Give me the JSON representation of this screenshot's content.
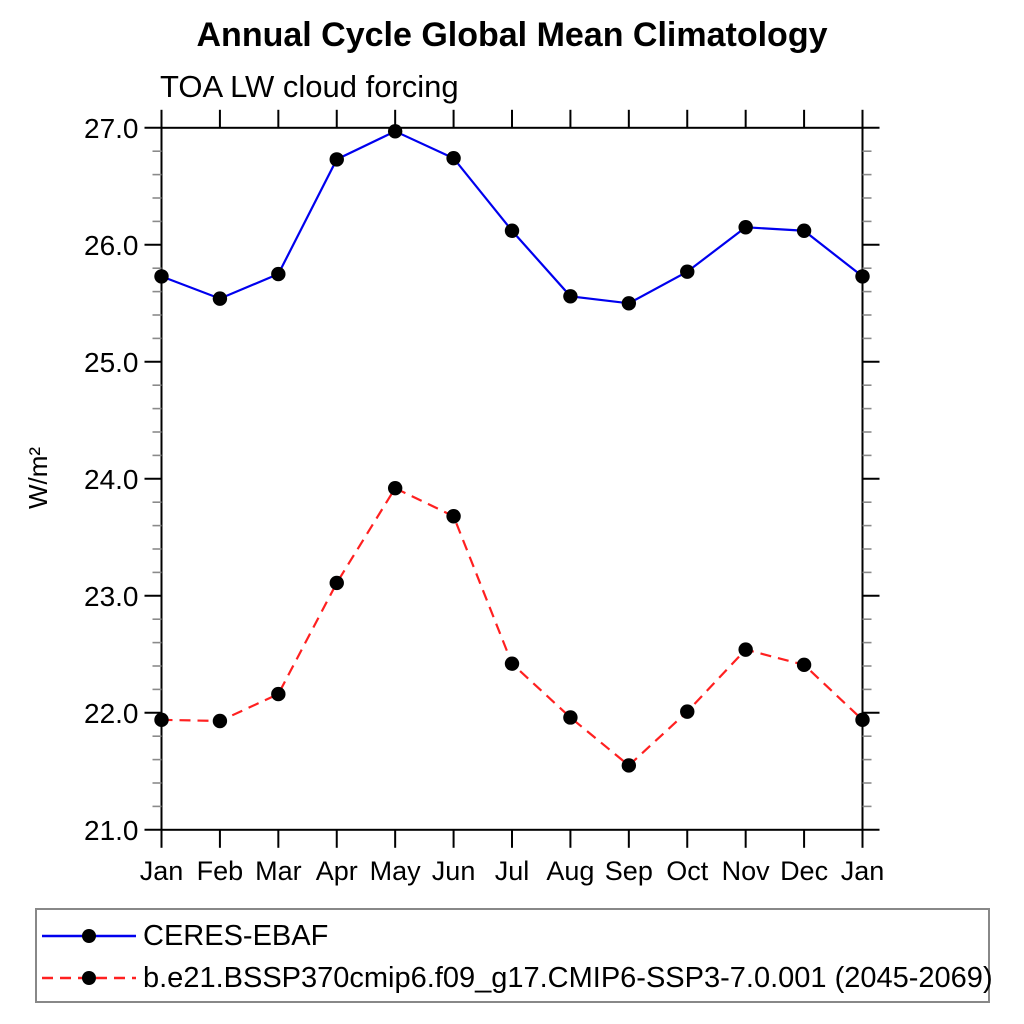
{
  "chart_data": {
    "type": "line",
    "title": "Annual Cycle Global Mean Climatology",
    "subtitle": "TOA LW cloud forcing",
    "ylabel": "W/m²",
    "xlabel": "",
    "categories": [
      "Jan",
      "Feb",
      "Mar",
      "Apr",
      "May",
      "Jun",
      "Jul",
      "Aug",
      "Sep",
      "Oct",
      "Nov",
      "Dec",
      "Jan"
    ],
    "ylim": [
      21.0,
      27.0
    ],
    "ytick_labels": [
      "21.0",
      "22.0",
      "23.0",
      "24.0",
      "25.0",
      "26.0",
      "27.0"
    ],
    "ytick_major": 1.0,
    "ytick_minor": 0.2,
    "grid": false,
    "legend_position": "bottom-left-box",
    "marker": {
      "shape": "filled-circle",
      "color": "#000000"
    },
    "series": [
      {
        "name": "CERES-EBAF",
        "color": "#0000ee",
        "line_style": "solid",
        "values": [
          25.73,
          25.54,
          25.75,
          26.73,
          26.97,
          26.74,
          26.12,
          25.56,
          25.5,
          25.77,
          26.15,
          26.12,
          25.73
        ]
      },
      {
        "name": "b.e21.BSSP370cmip6.f09_g17.CMIP6-SSP3-7.0.001 (2045-2069)",
        "color": "#ff2020",
        "line_style": "dashed",
        "values": [
          21.94,
          21.93,
          22.16,
          23.11,
          23.92,
          23.68,
          22.42,
          21.96,
          21.55,
          22.01,
          22.54,
          22.41,
          21.94
        ]
      }
    ]
  }
}
